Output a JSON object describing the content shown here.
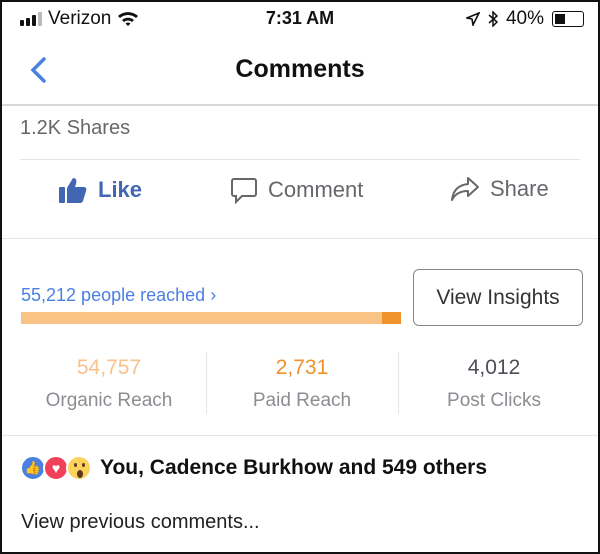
{
  "status_bar": {
    "carrier": "Verizon",
    "time": "7:31 AM",
    "battery": "40%",
    "icons": [
      "signal-icon",
      "wifi-icon",
      "location-icon",
      "bluetooth-icon",
      "battery-icon"
    ]
  },
  "nav": {
    "title": "Comments",
    "back_icon": "chevron-left-icon"
  },
  "shares": "1.2K Shares",
  "actions": {
    "like": "Like",
    "comment": "Comment",
    "share": "Share"
  },
  "insights": {
    "people_reached": "55,212 people reached",
    "organic_fraction": 0.95,
    "button": "View Insights",
    "stats": [
      {
        "value": "54,757",
        "label": "Organic Reach",
        "color": "#f7c28b"
      },
      {
        "value": "2,731",
        "label": "Paid Reach",
        "color": "#f0922b"
      },
      {
        "value": "4,012",
        "label": "Post Clicks",
        "color": "#4b4f56"
      }
    ]
  },
  "reactions": {
    "text": "You, Cadence Burkhow and 549 others",
    "icons": [
      "like-reaction-icon",
      "love-reaction-icon",
      "wow-reaction-icon"
    ]
  },
  "view_previous": "View previous comments...",
  "colors": {
    "accent": "#4267b2",
    "link": "#4a80e0",
    "organic": "#f9c385",
    "paid": "#f0922b"
  }
}
